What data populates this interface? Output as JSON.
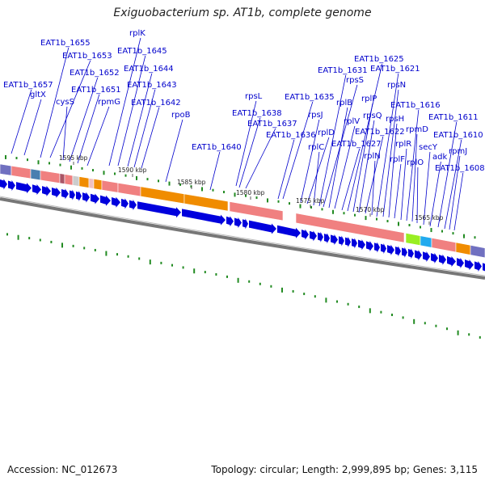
{
  "title": "Exiguobacterium sp. AT1b, complete genome",
  "accession": "Accession: NC_012673",
  "summary": "Topology: circular; Length: 2,999,895 bp; Genes: 3,115",
  "colors": {
    "label": "#0000cc",
    "gene_arrow": "#0000dd",
    "pink": "#f08080",
    "orange": "#f08c00",
    "green_tick": "#228B22",
    "backbone": "#808080",
    "lime": "#99ee22",
    "cyan": "#22aaee",
    "purple": "#7070c0"
  },
  "scale_labels": [
    "1595 kbp",
    "1590 kbp",
    "1585 kbp",
    "1580 kbp",
    "1575 kbp",
    "1570 kbp",
    "1565 kbp"
  ],
  "gene_labels": [
    "EAT1b_1657",
    "gltX",
    "EAT1b_1655",
    "EAT1b_1653",
    "cysS",
    "EAT1b_1652",
    "EAT1b_1651",
    "rpmG",
    "rplK",
    "EAT1b_1645",
    "EAT1b_1644",
    "EAT1b_1643",
    "EAT1b_1642",
    "rpoB",
    "EAT1b_1640",
    "rpsL",
    "EAT1b_1638",
    "EAT1b_1637",
    "EAT1b_1636",
    "EAT1b_1635",
    "rpsJ",
    "rplD",
    "rplC",
    "EAT1b_1631",
    "rpsS",
    "rplB",
    "rplV",
    "EAT1b_1627",
    "EAT1b_1625",
    "rplP",
    "rpsQ",
    "EAT1b_1622",
    "rplN",
    "EAT1b_1621",
    "rpsN",
    "rpsH",
    "rplF",
    "rplR",
    "EAT1b_1616",
    "rpmD",
    "rplO",
    "secY",
    "adk",
    "EAT1b_1611",
    "EAT1b_1610",
    "rpmJ",
    "EAT1b_1608"
  ]
}
